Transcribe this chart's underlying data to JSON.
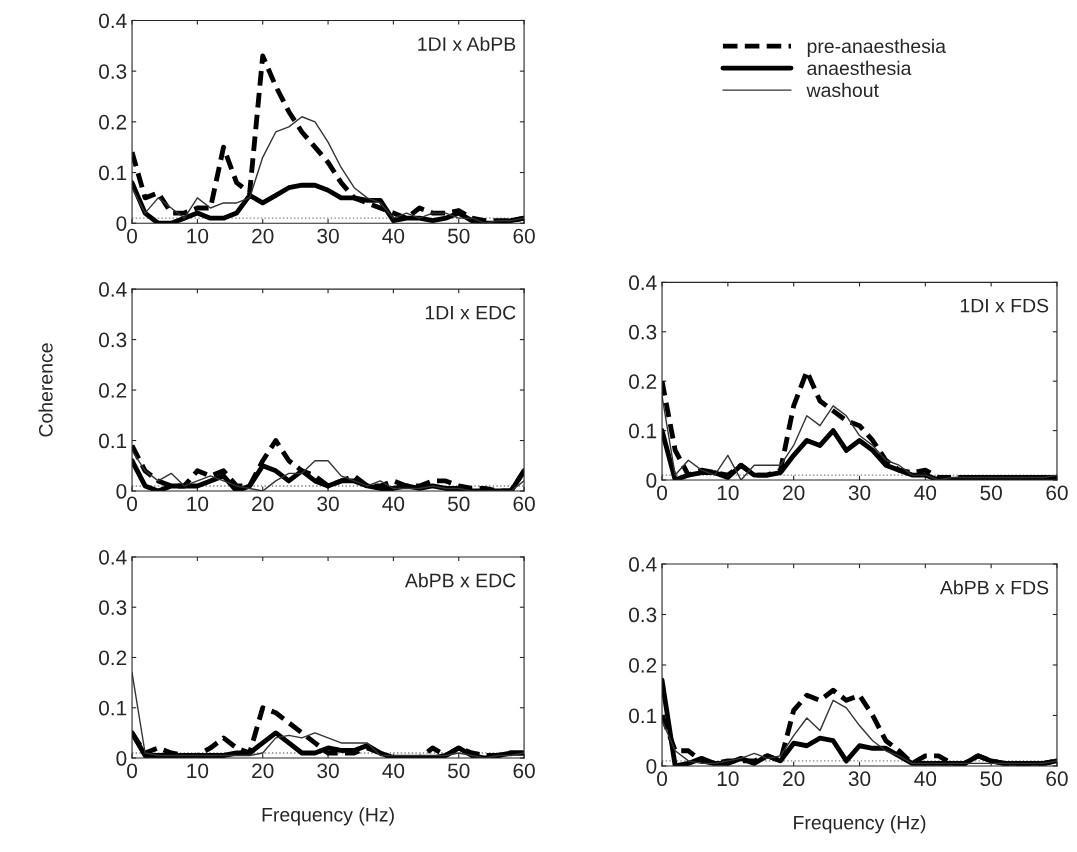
{
  "chart_data": [
    {
      "type": "line",
      "title": "1DI x AbPB",
      "legend": "right",
      "x": [
        0,
        2,
        4,
        6,
        8,
        10,
        12,
        14,
        16,
        18,
        20,
        22,
        24,
        26,
        28,
        30,
        32,
        34,
        36,
        38,
        40,
        42,
        44,
        46,
        48,
        50,
        52,
        54,
        56,
        58,
        60
      ],
      "xlim": [
        0,
        60
      ],
      "xticks": [
        0,
        10,
        20,
        30,
        40,
        50,
        60
      ],
      "ylim": [
        0,
        0.4
      ],
      "yticks": [
        0,
        0.1,
        0.2,
        0.3,
        0.4
      ],
      "ref_lines": [
        {
          "axis": "y",
          "value": 0.01,
          "line_style": "dotted",
          "color": "#808080"
        }
      ],
      "series": [
        {
          "name": "pre-anaesthesia",
          "color": "#000000",
          "line_style": "dashed",
          "values": [
            0.14,
            0.05,
            0.06,
            0.02,
            0.02,
            0.03,
            0.03,
            0.15,
            0.08,
            0.06,
            0.33,
            0.27,
            0.22,
            0.18,
            0.15,
            0.12,
            0.08,
            0.05,
            0.04,
            0.03,
            0.02,
            0.01,
            0.03,
            0.02,
            0.02,
            0.025,
            0.01,
            0.005,
            0.005,
            0.005,
            0.01
          ]
        },
        {
          "name": "anaesthesia",
          "color": "#000000",
          "line_style": "solid",
          "values": [
            0.08,
            0.02,
            0.0,
            0.0,
            0.01,
            0.02,
            0.01,
            0.01,
            0.02,
            0.055,
            0.04,
            0.055,
            0.07,
            0.075,
            0.075,
            0.065,
            0.05,
            0.05,
            0.045,
            0.045,
            0.005,
            0.01,
            0.01,
            0.005,
            0.01,
            0.02,
            0.005,
            0.0,
            0.0,
            0.005,
            0.01
          ]
        },
        {
          "name": "washout",
          "color": "#333333",
          "line_style": "solid",
          "values": [
            0.07,
            0.02,
            0.05,
            0.03,
            0.01,
            0.05,
            0.03,
            0.04,
            0.04,
            0.05,
            0.13,
            0.18,
            0.19,
            0.21,
            0.2,
            0.16,
            0.11,
            0.07,
            0.05,
            0.04,
            0.01,
            0.02,
            0.01,
            0.02,
            0.02,
            0.01,
            0.01,
            0.0,
            0.005,
            0.005,
            0.01
          ]
        }
      ]
    },
    {
      "type": "line",
      "title": "1DI x EDC",
      "ylabel": "Coherence",
      "x": [
        0,
        2,
        4,
        6,
        8,
        10,
        12,
        14,
        16,
        18,
        20,
        22,
        24,
        26,
        28,
        30,
        32,
        34,
        36,
        38,
        40,
        42,
        44,
        46,
        48,
        50,
        52,
        54,
        56,
        58,
        60
      ],
      "xlim": [
        0,
        60
      ],
      "xticks": [
        0,
        10,
        20,
        30,
        40,
        50,
        60
      ],
      "ylim": [
        0,
        0.4
      ],
      "yticks": [
        0,
        0.1,
        0.2,
        0.3,
        0.4
      ],
      "ref_lines": [
        {
          "axis": "y",
          "value": 0.01,
          "line_style": "dotted",
          "color": "#808080"
        }
      ],
      "series": [
        {
          "color": "#000000",
          "line_style": "dashed",
          "values": [
            0.09,
            0.04,
            0.02,
            0.01,
            0.01,
            0.04,
            0.03,
            0.04,
            0.01,
            0.01,
            0.06,
            0.1,
            0.06,
            0.04,
            0.03,
            0.01,
            0.02,
            0.03,
            0.01,
            0.01,
            0.02,
            0.01,
            0.01,
            0.02,
            0.02,
            0.01,
            0.005,
            0.005,
            0.0,
            0.0,
            0.04
          ]
        },
        {
          "color": "#000000",
          "line_style": "solid",
          "values": [
            0.06,
            0.01,
            0.0,
            0.01,
            0.01,
            0.01,
            0.02,
            0.03,
            0.0,
            0.01,
            0.05,
            0.04,
            0.02,
            0.04,
            0.02,
            0.01,
            0.02,
            0.02,
            0.01,
            0.005,
            0.005,
            0.01,
            0.005,
            0.01,
            0.005,
            0.005,
            0.0,
            0.0,
            0.0,
            0.0,
            0.04
          ]
        },
        {
          "color": "#333333",
          "line_style": "solid",
          "values": [
            0.08,
            0.04,
            0.02,
            0.035,
            0.01,
            0.02,
            0.03,
            0.02,
            0.01,
            0.005,
            0.0,
            0.02,
            0.035,
            0.035,
            0.06,
            0.06,
            0.03,
            0.02,
            0.01,
            0.02,
            0.005,
            0.005,
            0.005,
            0.01,
            0.005,
            0.005,
            0.0,
            0.0,
            0.0,
            0.0,
            0.02
          ]
        }
      ]
    },
    {
      "type": "line",
      "title": "1DI x FDS",
      "x": [
        0,
        2,
        4,
        6,
        8,
        10,
        12,
        14,
        16,
        18,
        20,
        22,
        24,
        26,
        28,
        30,
        32,
        34,
        36,
        38,
        40,
        42,
        44,
        46,
        48,
        50,
        52,
        54,
        56,
        58,
        60
      ],
      "xlim": [
        0,
        60
      ],
      "xticks": [
        0,
        10,
        20,
        30,
        40,
        50,
        60
      ],
      "ylim": [
        0,
        0.4
      ],
      "yticks": [
        0,
        0.1,
        0.2,
        0.3,
        0.4
      ],
      "ref_lines": [
        {
          "axis": "y",
          "value": 0.01,
          "line_style": "dotted",
          "color": "#808080"
        }
      ],
      "series": [
        {
          "color": "#000000",
          "line_style": "dashed",
          "values": [
            0.2,
            0.06,
            0.01,
            0.02,
            0.015,
            0.01,
            0.03,
            0.01,
            0.01,
            0.02,
            0.15,
            0.22,
            0.16,
            0.14,
            0.12,
            0.11,
            0.08,
            0.04,
            0.02,
            0.015,
            0.02,
            0.005,
            0.005,
            0.005,
            0.005,
            0.005,
            0.005,
            0.005,
            0.005,
            0.005,
            0.005
          ]
        },
        {
          "color": "#000000",
          "line_style": "solid",
          "values": [
            0.1,
            0.0,
            0.01,
            0.015,
            0.015,
            0.005,
            0.03,
            0.01,
            0.01,
            0.015,
            0.05,
            0.08,
            0.07,
            0.1,
            0.06,
            0.08,
            0.06,
            0.03,
            0.02,
            0.01,
            0.01,
            0.0,
            0.0,
            0.005,
            0.005,
            0.005,
            0.005,
            0.005,
            0.005,
            0.005,
            0.005
          ]
        },
        {
          "color": "#333333",
          "line_style": "solid",
          "values": [
            0.17,
            0.01,
            0.04,
            0.02,
            0.01,
            0.05,
            0.0,
            0.03,
            0.03,
            0.03,
            0.07,
            0.13,
            0.11,
            0.15,
            0.13,
            0.09,
            0.07,
            0.04,
            0.03,
            0.01,
            0.01,
            0.0,
            0.005,
            0.005,
            0.005,
            0.005,
            0.005,
            0.005,
            0.005,
            0.005,
            0.01
          ]
        }
      ]
    },
    {
      "type": "line",
      "title": "AbPB x EDC",
      "xlabel": "Frequency (Hz)",
      "x": [
        0,
        2,
        4,
        6,
        8,
        10,
        12,
        14,
        16,
        18,
        20,
        22,
        24,
        26,
        28,
        30,
        32,
        34,
        36,
        38,
        40,
        42,
        44,
        46,
        48,
        50,
        52,
        54,
        56,
        58,
        60
      ],
      "xlim": [
        0,
        60
      ],
      "xticks": [
        0,
        10,
        20,
        30,
        40,
        50,
        60
      ],
      "ylim": [
        0,
        0.4
      ],
      "yticks": [
        0,
        0.1,
        0.2,
        0.3,
        0.4
      ],
      "ref_lines": [
        {
          "axis": "y",
          "value": 0.01,
          "line_style": "dotted",
          "color": "#808080"
        }
      ],
      "series": [
        {
          "color": "#000000",
          "line_style": "dashed",
          "values": [
            0.05,
            0.01,
            0.02,
            0.01,
            0.005,
            0.005,
            0.02,
            0.04,
            0.02,
            0.01,
            0.1,
            0.09,
            0.07,
            0.05,
            0.03,
            0.01,
            0.01,
            0.01,
            0.02,
            0.01,
            0.0,
            0.0,
            0.0,
            0.02,
            0.005,
            0.02,
            0.01,
            0.005,
            0.005,
            0.01,
            0.01
          ]
        },
        {
          "color": "#000000",
          "line_style": "solid",
          "values": [
            0.05,
            0.005,
            0.005,
            0.005,
            0.005,
            0.005,
            0.005,
            0.005,
            0.01,
            0.01,
            0.03,
            0.05,
            0.03,
            0.01,
            0.01,
            0.02,
            0.015,
            0.015,
            0.025,
            0.01,
            0.0,
            0.0,
            0.0,
            0.0,
            0.005,
            0.02,
            0.005,
            0.0,
            0.005,
            0.01,
            0.01
          ]
        },
        {
          "color": "#333333",
          "line_style": "solid",
          "values": [
            0.17,
            0.01,
            0.005,
            0.005,
            0.005,
            0.005,
            0.005,
            0.005,
            0.005,
            0.005,
            0.01,
            0.04,
            0.045,
            0.04,
            0.05,
            0.04,
            0.03,
            0.03,
            0.03,
            0.005,
            0.005,
            0.005,
            0.005,
            0.005,
            0.005,
            0.01,
            0.005,
            0.0,
            0.005,
            0.005,
            0.01
          ]
        }
      ]
    },
    {
      "type": "line",
      "title": "AbPB x FDS",
      "xlabel": "Frequency (Hz)",
      "x": [
        0,
        2,
        4,
        6,
        8,
        10,
        12,
        14,
        16,
        18,
        20,
        22,
        24,
        26,
        28,
        30,
        32,
        34,
        36,
        38,
        40,
        42,
        44,
        46,
        48,
        50,
        52,
        54,
        56,
        58,
        60
      ],
      "xlim": [
        0,
        60
      ],
      "xticks": [
        0,
        10,
        20,
        30,
        40,
        50,
        60
      ],
      "ylim": [
        0,
        0.4
      ],
      "yticks": [
        0,
        0.1,
        0.2,
        0.3,
        0.4
      ],
      "ref_lines": [
        {
          "axis": "y",
          "value": 0.01,
          "line_style": "dotted",
          "color": "#808080"
        }
      ],
      "series": [
        {
          "color": "#000000",
          "line_style": "dashed",
          "values": [
            0.1,
            0.03,
            0.03,
            0.01,
            0.005,
            0.01,
            0.01,
            0.01,
            0.02,
            0.01,
            0.11,
            0.14,
            0.13,
            0.15,
            0.13,
            0.14,
            0.1,
            0.05,
            0.03,
            0.005,
            0.02,
            0.02,
            0.005,
            0.005,
            0.02,
            0.01,
            0.005,
            0.005,
            0.005,
            0.005,
            0.01
          ]
        },
        {
          "color": "#000000",
          "line_style": "solid",
          "values": [
            0.17,
            0.0,
            0.005,
            0.015,
            0.005,
            0.005,
            0.015,
            0.005,
            0.02,
            0.01,
            0.045,
            0.04,
            0.055,
            0.05,
            0.01,
            0.04,
            0.035,
            0.035,
            0.02,
            0.005,
            0.005,
            0.005,
            0.005,
            0.005,
            0.02,
            0.01,
            0.005,
            0.005,
            0.005,
            0.005,
            0.01
          ]
        },
        {
          "color": "#333333",
          "line_style": "solid",
          "values": [
            0.09,
            0.03,
            0.01,
            0.005,
            0.005,
            0.01,
            0.015,
            0.025,
            0.015,
            0.02,
            0.06,
            0.095,
            0.07,
            0.13,
            0.115,
            0.08,
            0.05,
            0.03,
            0.02,
            0.005,
            0.005,
            0.005,
            0.005,
            0.005,
            0.005,
            0.005,
            0.005,
            0.005,
            0.005,
            0.005,
            0.01
          ]
        }
      ]
    }
  ]
}
